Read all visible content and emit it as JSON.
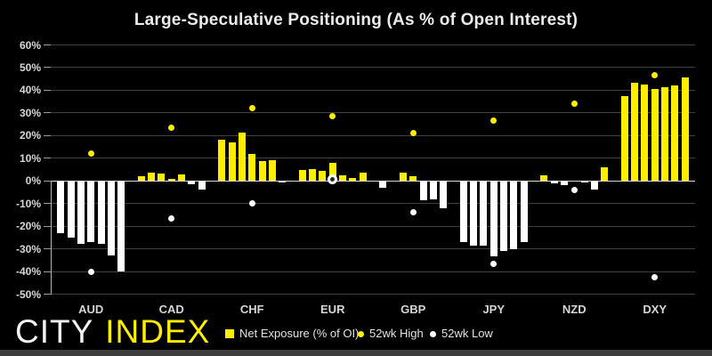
{
  "logo": {
    "city": "CITY",
    "index": "INDEX"
  },
  "legend": [
    {
      "label": "Net Exposure (% of OI)",
      "marker": "square",
      "color": "#ffee00"
    },
    {
      "label": "52wk High",
      "marker": "dot",
      "color": "#ffee00"
    },
    {
      "label": "52wk Low",
      "marker": "dot",
      "color": "#ffffff"
    }
  ],
  "colors": {
    "background": "#000000",
    "bar_positive": "#ffee00",
    "bar_negative": "#ffffff",
    "high_dot": "#ffee00",
    "low_dot": "#ffffff",
    "grid": "#3f3f3f",
    "zero_line": "#d9d9d9",
    "axis": "#9a9a9a",
    "axis_line": "#b5b5b5",
    "footer_strip": "#3d3d3d",
    "logo_city": "#f2f2f2",
    "logo_index": "#ffee00"
  },
  "chart_data": {
    "type": "bar",
    "title": "Large-Speculative Positioning (As % of Open Interest)",
    "categories": [
      "AUD",
      "CAD",
      "CHF",
      "EUR",
      "GBP",
      "JPY",
      "NZD",
      "DXY"
    ],
    "bars_per_category": 7,
    "series": [
      {
        "name": "Net Exposure (% of OI)",
        "type": "bar",
        "values": [
          [
            -23.0,
            -25.0,
            -27.8,
            -27.1,
            -27.8,
            -33.0,
            -40.0
          ],
          [
            2.2,
            3.6,
            3.2,
            1.0,
            2.8,
            -1.3,
            -3.9
          ],
          [
            18.1,
            17.1,
            21.3,
            11.9,
            8.7,
            9.0,
            -0.5
          ],
          [
            4.8,
            5.2,
            4.5,
            7.9,
            2.6,
            1.4,
            3.6
          ],
          [
            -2.9,
            0.0,
            3.5,
            1.9,
            -8.7,
            -8.0,
            -12.0
          ],
          [
            -27.1,
            -28.7,
            -28.4,
            -33.3,
            -30.8,
            -30.0,
            -26.9
          ],
          [
            2.6,
            -0.9,
            -1.9,
            0.0,
            -0.7,
            -3.9,
            6.1
          ],
          [
            37.5,
            43.3,
            42.4,
            40.7,
            41.3,
            42.0,
            45.5
          ]
        ]
      },
      {
        "name": "52wk High",
        "type": "point",
        "values": [
          12.3,
          23.3,
          32.0,
          28.7,
          21.3,
          26.5,
          34.2,
          46.5
        ]
      },
      {
        "name": "52wk Low",
        "type": "point",
        "ring_index": 3,
        "values": [
          -40.0,
          -16.5,
          -9.7,
          0.9,
          -14.0,
          -36.5,
          -4.1,
          -42.4
        ]
      }
    ],
    "ylim": [
      -50,
      60
    ],
    "ytick_step": 10,
    "ytick_format": "percent",
    "grid": true,
    "legend_position": "bottom"
  }
}
